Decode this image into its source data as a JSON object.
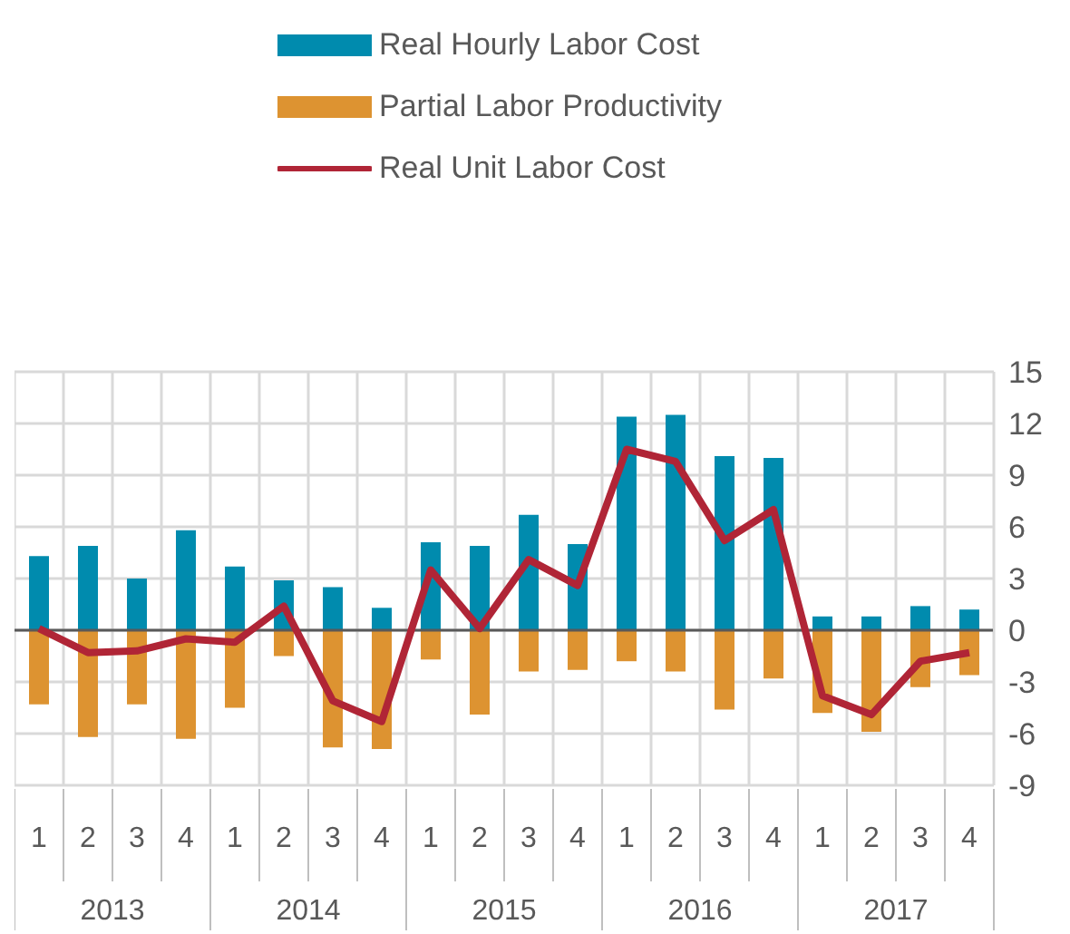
{
  "chart_data": {
    "type": "bar",
    "categories": [
      "1",
      "2",
      "3",
      "4",
      "1",
      "2",
      "3",
      "4",
      "1",
      "2",
      "3",
      "4",
      "1",
      "2",
      "3",
      "4",
      "1",
      "2",
      "3",
      "4"
    ],
    "annotations": [
      "2013",
      "2014",
      "2015",
      "2016",
      "2017"
    ],
    "series": [
      {
        "name": "Real Hourly Labor Cost",
        "color": "#008bae",
        "values": [
          4.3,
          4.9,
          3.0,
          5.8,
          3.7,
          2.9,
          2.5,
          1.3,
          5.1,
          4.9,
          6.7,
          5.0,
          12.4,
          12.5,
          10.1,
          10.0,
          0.8,
          0.8,
          1.4,
          1.2
        ]
      },
      {
        "name": "Partial Labor Productivity",
        "color": "#dd9331",
        "values": [
          -4.3,
          -6.2,
          -4.3,
          -6.3,
          -4.5,
          -1.5,
          -6.8,
          -6.9,
          -1.7,
          -4.9,
          -2.4,
          -2.3,
          -1.8,
          -2.4,
          -4.6,
          -2.8,
          -4.8,
          -5.9,
          -3.3,
          -2.6
        ]
      },
      {
        "name": "Real Unit Labor Cost",
        "type": "line",
        "color": "#b02536",
        "values": [
          0.1,
          -1.3,
          -1.2,
          -0.5,
          -0.7,
          1.4,
          -4.1,
          -5.3,
          3.5,
          0.1,
          4.1,
          2.6,
          10.5,
          9.8,
          5.2,
          7.0,
          -3.8,
          -4.9,
          -1.8,
          -1.3
        ]
      }
    ],
    "stacked": true,
    "ylim": [
      -9,
      15
    ],
    "yticks": [
      -9,
      -6,
      -3,
      0,
      3,
      6,
      9,
      12,
      15
    ],
    "grid": true,
    "legend": "top",
    "marker": "none",
    "line_style": "solid",
    "ref_lines": [
      {
        "axis": "y",
        "value": 0,
        "color": "#595959"
      }
    ]
  }
}
